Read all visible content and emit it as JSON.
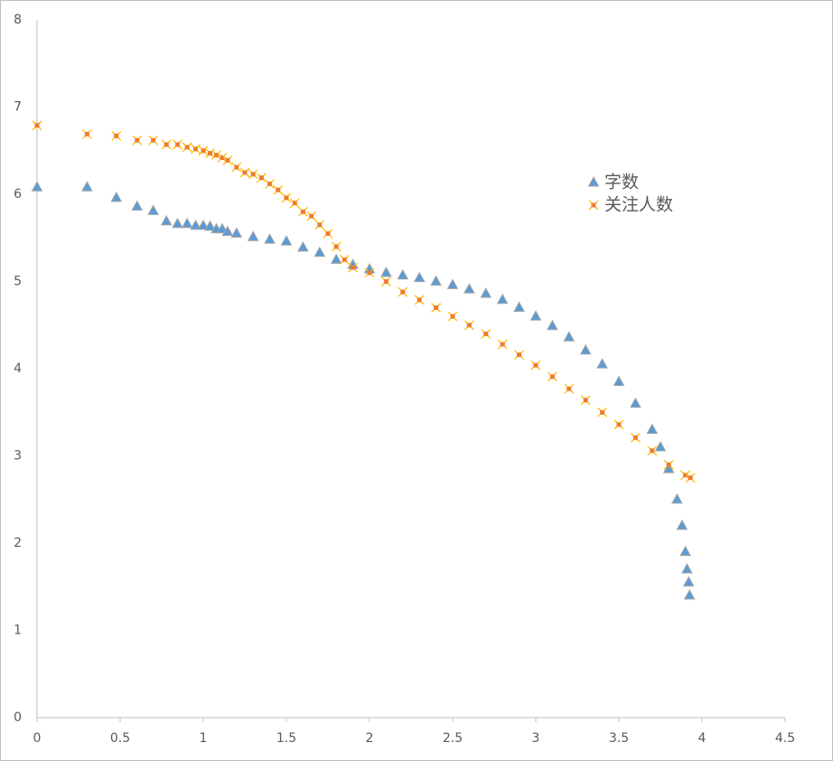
{
  "chart_data": {
    "type": "scatter",
    "xlim": [
      0,
      4.5
    ],
    "xticks": [
      0,
      0.5,
      1,
      1.5,
      2,
      2.5,
      3,
      3.5,
      4,
      4.5
    ],
    "ylim": [
      0,
      8
    ],
    "yticks": [
      0,
      1,
      2,
      3,
      4,
      5,
      6,
      7,
      8
    ],
    "grid": false,
    "legend": "right",
    "series": [
      {
        "name": "字数",
        "marker": "triangle",
        "color": "#5b9bd5",
        "edge_color": "#a5a5a5",
        "x": [
          0,
          0.301,
          0.477,
          0.602,
          0.699,
          0.778,
          0.845,
          0.903,
          0.954,
          1.0,
          1.041,
          1.079,
          1.114,
          1.146,
          1.2,
          1.3,
          1.4,
          1.5,
          1.6,
          1.7,
          1.8,
          1.9,
          2.0,
          2.1,
          2.2,
          2.3,
          2.4,
          2.5,
          2.6,
          2.7,
          2.8,
          2.9,
          3.0,
          3.1,
          3.2,
          3.3,
          3.4,
          3.5,
          3.6,
          3.7,
          3.75,
          3.8,
          3.85,
          3.88,
          3.9,
          3.91,
          3.92,
          3.925
        ],
        "values": [
          6.08,
          6.08,
          5.96,
          5.86,
          5.81,
          5.69,
          5.66,
          5.66,
          5.64,
          5.64,
          5.63,
          5.6,
          5.6,
          5.57,
          5.55,
          5.51,
          5.48,
          5.46,
          5.39,
          5.33,
          5.25,
          5.19,
          5.14,
          5.1,
          5.07,
          5.04,
          5.0,
          4.96,
          4.91,
          4.86,
          4.79,
          4.7,
          4.6,
          4.49,
          4.36,
          4.21,
          4.05,
          3.85,
          3.6,
          3.3,
          3.1,
          2.85,
          2.5,
          2.2,
          1.9,
          1.7,
          1.55,
          1.4
        ]
      },
      {
        "name": "关注人数",
        "marker": "x",
        "color": "#ffc000",
        "edge_color": "#ed7d31",
        "x": [
          0,
          0.301,
          0.477,
          0.602,
          0.699,
          0.778,
          0.845,
          0.903,
          0.954,
          1.0,
          1.041,
          1.079,
          1.114,
          1.146,
          1.2,
          1.25,
          1.3,
          1.35,
          1.4,
          1.45,
          1.5,
          1.55,
          1.6,
          1.65,
          1.7,
          1.75,
          1.8,
          1.85,
          1.9,
          2.0,
          2.1,
          2.2,
          2.3,
          2.4,
          2.5,
          2.6,
          2.7,
          2.8,
          2.9,
          3.0,
          3.1,
          3.2,
          3.3,
          3.4,
          3.5,
          3.6,
          3.7,
          3.8,
          3.9,
          3.93
        ],
        "values": [
          6.79,
          6.69,
          6.67,
          6.62,
          6.62,
          6.57,
          6.57,
          6.54,
          6.52,
          6.5,
          6.47,
          6.45,
          6.42,
          6.39,
          6.31,
          6.25,
          6.23,
          6.19,
          6.12,
          6.05,
          5.96,
          5.9,
          5.8,
          5.75,
          5.65,
          5.55,
          5.4,
          5.25,
          5.16,
          5.1,
          5.0,
          4.88,
          4.79,
          4.7,
          4.6,
          4.5,
          4.4,
          4.28,
          4.16,
          4.04,
          3.91,
          3.77,
          3.64,
          3.5,
          3.36,
          3.21,
          3.06,
          2.9,
          2.78,
          2.75
        ]
      }
    ]
  }
}
